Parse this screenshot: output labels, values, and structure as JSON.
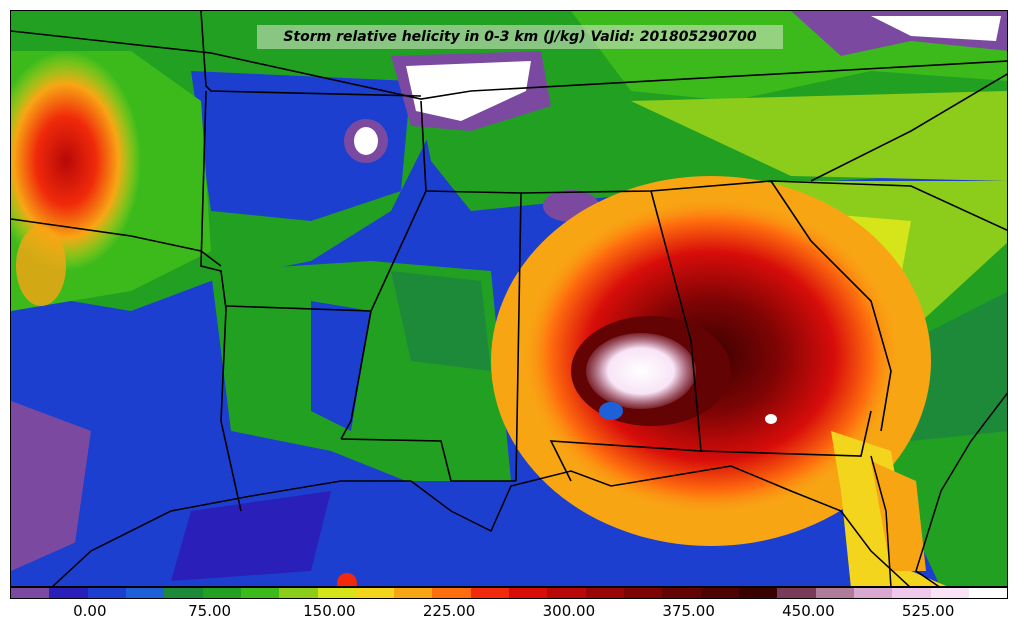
{
  "map": {
    "title": "Storm relative helicity in 0-3 km (J/kg) Valid: 201805290700"
  },
  "colorbar": {
    "colors": [
      "#7b4aa0",
      "#2a1fb8",
      "#1c3fd0",
      "#1e60d8",
      "#1d8a3a",
      "#22a022",
      "#3cba1c",
      "#8ccd1c",
      "#d6e41a",
      "#f2d51c",
      "#f8a514",
      "#ff6e0e",
      "#f02a0a",
      "#d80d0a",
      "#b80808",
      "#9a0606",
      "#7e0404",
      "#640303",
      "#4e0202",
      "#3a0101",
      "#7a3a5a",
      "#b07a9a",
      "#d8a8d0",
      "#f0c8ec",
      "#f8e4f6",
      "#ffffff"
    ],
    "tick_labels": [
      "0.00",
      "75.00",
      "150.00",
      "225.00",
      "300.00",
      "375.00",
      "450.00",
      "525.00"
    ],
    "tick_values": [
      0,
      75,
      150,
      225,
      300,
      375,
      450,
      525
    ],
    "range": [
      -50,
      575
    ]
  }
}
